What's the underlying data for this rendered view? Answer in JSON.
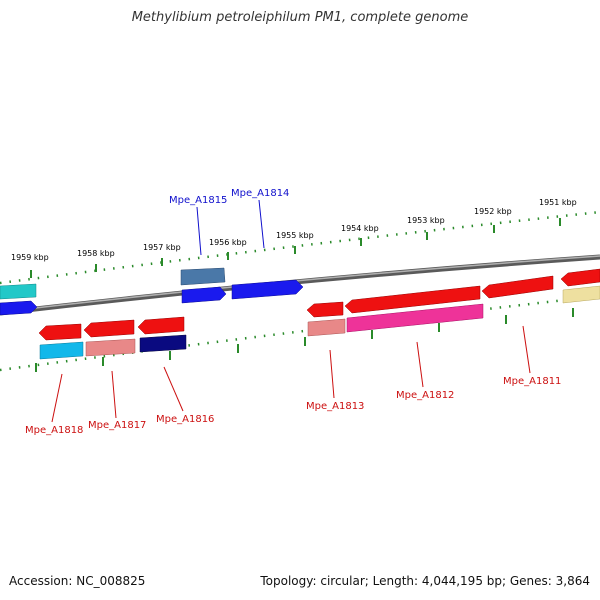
{
  "title": "Methylibium petroleiphilum PM1, complete genome",
  "accession": "Accession: NC_008825",
  "topology": "Topology: circular; Length: 4,044,195 bp; Genes: 3,864",
  "kbp_labels": [
    "1959 kbp",
    "1958 kbp",
    "1957 kbp",
    "1956 kbp",
    "1955 kbp",
    "1954 kbp",
    "1953 kbp",
    "1952 kbp",
    "1951 kbp"
  ],
  "gene_labels": {
    "a1815": "Mpe_A1815",
    "a1814": "Mpe_A1814",
    "a1818": "Mpe_A1818",
    "a1817": "Mpe_A1817",
    "a1816": "Mpe_A1816",
    "a1813": "Mpe_A1813",
    "a1812": "Mpe_A1812",
    "a1811": "Mpe_A1811"
  },
  "colors": {
    "backbone": "#7a7a7a",
    "tick": "#2a8a2a",
    "forward_label": "#1010cc",
    "reverse_label": "#cc1010",
    "cds_red": "#ee1111",
    "cds_blue": "#1a1aee",
    "cds_navy": "#0a0a80",
    "cds_steel": "#4a78a8",
    "cds_cyan": "#12b8ea",
    "cds_salmon": "#e88888",
    "cds_pink": "#ee3399",
    "cds_yellow": "#eee0a0",
    "cds_teal": "#22c8c8"
  }
}
